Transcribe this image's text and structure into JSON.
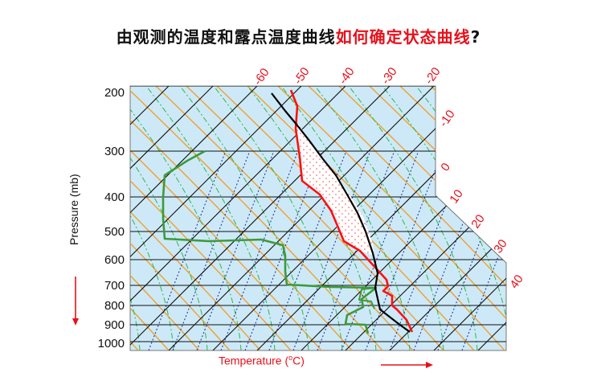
{
  "title": {
    "part1": "由观测的温度和露点温度曲线",
    "part2": "如何确定状态曲线",
    "part3": "?"
  },
  "axis": {
    "y_label": "Pressure (mb)",
    "x_label_prefix": "Temperature (",
    "x_label_unit_sup": "o",
    "x_label_suffix": "C)"
  },
  "pressure_levels": [
    "200",
    "300",
    "400",
    "500",
    "600",
    "700",
    "800",
    "900",
    "1000"
  ],
  "temperature_labels": [
    "-60",
    "-50",
    "-40",
    "-30",
    "-20",
    "-10",
    "0",
    "10",
    "20",
    "30",
    "40"
  ],
  "colors": {
    "background": "#cde9f7",
    "isotherm": "#111111",
    "dry_adiabat": "#f0a030",
    "moist_adiabat": "#2fb64a",
    "mixing_ratio": "#1c2a9c",
    "temperature_curve": "#ff1010",
    "dewpoint_curve": "#3e9a3a",
    "parcel_curve": "#000000",
    "arrow": "#e8101a"
  }
}
